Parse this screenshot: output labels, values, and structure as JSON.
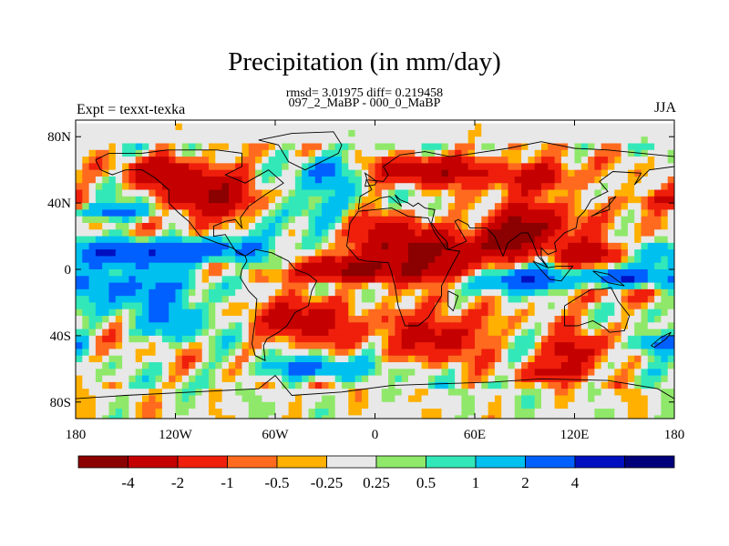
{
  "chart_data": {
    "type": "heatmap",
    "title": "Precipitation (in mm/day)",
    "stats_line": "rmsd= 3.01975 diff= 0.219458",
    "subtitle": "097_2_MaBP - 000_0_MaBP",
    "left_label": "Expt = texxt-texka",
    "right_label": "JJA",
    "x_ticks": [
      {
        "value": -180,
        "label": "180"
      },
      {
        "value": -120,
        "label": "120W"
      },
      {
        "value": -60,
        "label": "60W"
      },
      {
        "value": 0,
        "label": "0"
      },
      {
        "value": 60,
        "label": "60E"
      },
      {
        "value": 120,
        "label": "120E"
      },
      {
        "value": 180,
        "label": "180"
      }
    ],
    "y_ticks": [
      {
        "value": 80,
        "label": "80N"
      },
      {
        "value": 40,
        "label": "40N"
      },
      {
        "value": 0,
        "label": "0"
      },
      {
        "value": -40,
        "label": "40S"
      },
      {
        "value": -80,
        "label": "80S"
      }
    ],
    "xlim": [
      -180,
      180
    ],
    "ylim": [
      -90,
      90
    ],
    "colorbar": {
      "colors": [
        "#8b0000",
        "#c40000",
        "#ef1f0c",
        "#ff6a1f",
        "#ffb000",
        "#e8e8e8",
        "#8fe86a",
        "#33e8b8",
        "#00c0f0",
        "#0060ff",
        "#0010c0",
        "#00007a"
      ],
      "labels": [
        "-4",
        "-2",
        "-1",
        "-0.5",
        "-0.25",
        "0.25",
        "0.5",
        "1",
        "2",
        "4"
      ]
    }
  }
}
